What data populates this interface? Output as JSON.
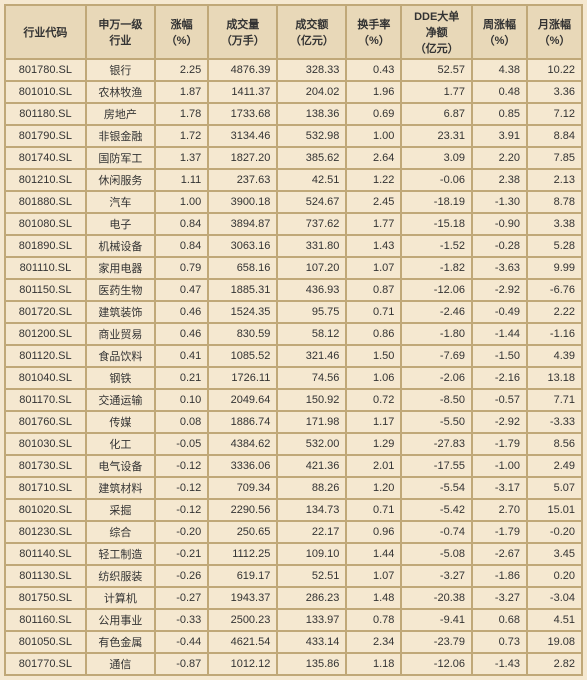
{
  "columns": [
    "行业代码",
    "申万一级\n行业",
    "涨幅\n（%）",
    "成交量\n（万手）",
    "成交额\n（亿元）",
    "换手率\n（%）",
    "DDE大单\n净额\n（亿元）",
    "周涨幅\n（%）",
    "月涨幅\n（%）"
  ],
  "rows": [
    [
      "801780.SL",
      "银行",
      "2.25",
      "4876.39",
      "328.33",
      "0.43",
      "52.57",
      "4.38",
      "10.22"
    ],
    [
      "801010.SL",
      "农林牧渔",
      "1.87",
      "1411.37",
      "204.02",
      "1.96",
      "1.77",
      "0.48",
      "3.36"
    ],
    [
      "801180.SL",
      "房地产",
      "1.78",
      "1733.68",
      "138.36",
      "0.69",
      "6.87",
      "0.85",
      "7.12"
    ],
    [
      "801790.SL",
      "非银金融",
      "1.72",
      "3134.46",
      "532.98",
      "1.00",
      "23.31",
      "3.91",
      "8.84"
    ],
    [
      "801740.SL",
      "国防军工",
      "1.37",
      "1827.20",
      "385.62",
      "2.64",
      "3.09",
      "2.20",
      "7.85"
    ],
    [
      "801210.SL",
      "休闲服务",
      "1.11",
      "237.63",
      "42.51",
      "1.22",
      "-0.06",
      "2.38",
      "2.13"
    ],
    [
      "801880.SL",
      "汽车",
      "1.00",
      "3900.18",
      "524.67",
      "2.45",
      "-18.19",
      "-1.30",
      "8.78"
    ],
    [
      "801080.SL",
      "电子",
      "0.84",
      "3894.87",
      "737.62",
      "1.77",
      "-15.18",
      "-0.90",
      "3.38"
    ],
    [
      "801890.SL",
      "机械设备",
      "0.84",
      "3063.16",
      "331.80",
      "1.43",
      "-1.52",
      "-0.28",
      "5.28"
    ],
    [
      "801110.SL",
      "家用电器",
      "0.79",
      "658.16",
      "107.20",
      "1.07",
      "-1.82",
      "-3.63",
      "9.99"
    ],
    [
      "801150.SL",
      "医药生物",
      "0.47",
      "1885.31",
      "436.93",
      "0.87",
      "-12.06",
      "-2.92",
      "-6.76"
    ],
    [
      "801720.SL",
      "建筑装饰",
      "0.46",
      "1524.35",
      "95.75",
      "0.71",
      "-2.46",
      "-0.49",
      "2.22"
    ],
    [
      "801200.SL",
      "商业贸易",
      "0.46",
      "830.59",
      "58.12",
      "0.86",
      "-1.80",
      "-1.44",
      "-1.16"
    ],
    [
      "801120.SL",
      "食品饮料",
      "0.41",
      "1085.52",
      "321.46",
      "1.50",
      "-7.69",
      "-1.50",
      "4.39"
    ],
    [
      "801040.SL",
      "钢铁",
      "0.21",
      "1726.11",
      "74.56",
      "1.06",
      "-2.06",
      "-2.16",
      "13.18"
    ],
    [
      "801170.SL",
      "交通运输",
      "0.10",
      "2049.64",
      "150.92",
      "0.72",
      "-8.50",
      "-0.57",
      "7.71"
    ],
    [
      "801760.SL",
      "传媒",
      "0.08",
      "1886.74",
      "171.98",
      "1.17",
      "-5.50",
      "-2.92",
      "-3.33"
    ],
    [
      "801030.SL",
      "化工",
      "-0.05",
      "4384.62",
      "532.00",
      "1.29",
      "-27.83",
      "-1.79",
      "8.56"
    ],
    [
      "801730.SL",
      "电气设备",
      "-0.12",
      "3336.06",
      "421.36",
      "2.01",
      "-17.55",
      "-1.00",
      "2.49"
    ],
    [
      "801710.SL",
      "建筑材料",
      "-0.12",
      "709.34",
      "88.26",
      "1.20",
      "-5.54",
      "-3.17",
      "5.07"
    ],
    [
      "801020.SL",
      "采掘",
      "-0.12",
      "2290.56",
      "134.73",
      "0.71",
      "-5.42",
      "2.70",
      "15.01"
    ],
    [
      "801230.SL",
      "综合",
      "-0.20",
      "250.65",
      "22.17",
      "0.96",
      "-0.74",
      "-1.79",
      "-0.20"
    ],
    [
      "801140.SL",
      "轻工制造",
      "-0.21",
      "1112.25",
      "109.10",
      "1.44",
      "-5.08",
      "-2.67",
      "3.45"
    ],
    [
      "801130.SL",
      "纺织服装",
      "-0.26",
      "619.17",
      "52.51",
      "1.07",
      "-3.27",
      "-1.86",
      "0.20"
    ],
    [
      "801750.SL",
      "计算机",
      "-0.27",
      "1943.37",
      "286.23",
      "1.48",
      "-20.38",
      "-3.27",
      "-3.04"
    ],
    [
      "801160.SL",
      "公用事业",
      "-0.33",
      "2500.23",
      "133.97",
      "0.78",
      "-9.41",
      "0.68",
      "4.51"
    ],
    [
      "801050.SL",
      "有色金属",
      "-0.44",
      "4621.54",
      "433.14",
      "2.34",
      "-23.79",
      "0.73",
      "19.08"
    ],
    [
      "801770.SL",
      "通信",
      "-0.87",
      "1012.12",
      "135.86",
      "1.18",
      "-12.06",
      "-1.43",
      "2.82"
    ]
  ],
  "style": {
    "border_color": "#c0a878",
    "header_bg": "#e8d8b8",
    "body_bg": "#f5e8d0",
    "font_size": 11
  }
}
